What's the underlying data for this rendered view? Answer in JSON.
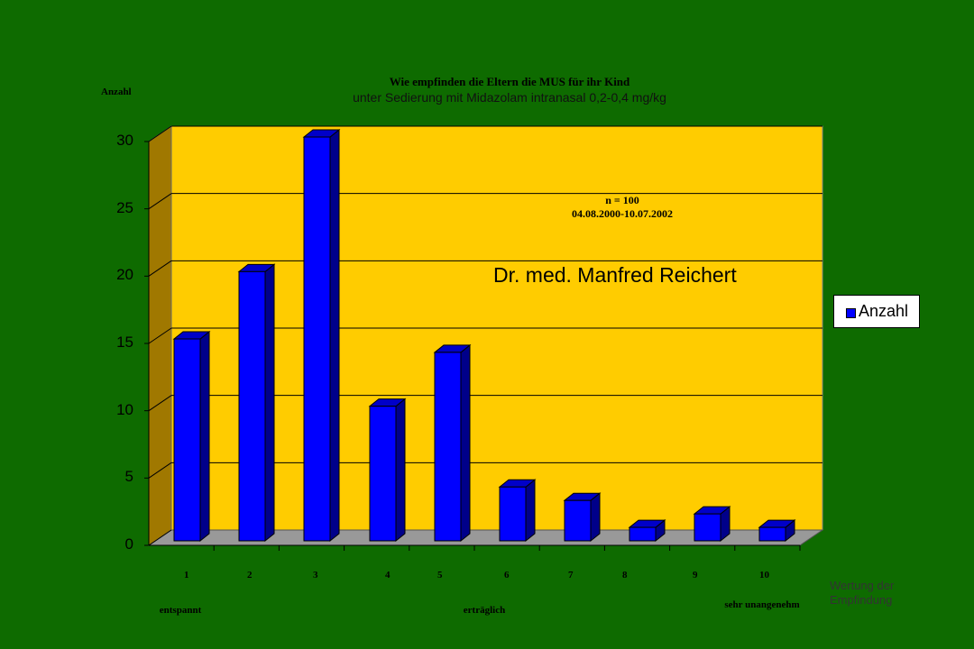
{
  "chart_data": {
    "type": "bar",
    "title": "Wie empfinden die Eltern die MUS für ihr Kind",
    "subtitle": "unter Sedierung mit Midazolam  intranasal 0,2-0,4 mg/kg",
    "ylabel": "Anzahl",
    "xlabel": "Wertung der Empfindung",
    "categories": [
      "1",
      "2",
      "3",
      "4",
      "5",
      "6",
      "7",
      "8",
      "9",
      "10"
    ],
    "series": [
      {
        "name": "Anzahl",
        "values": [
          15,
          20,
          30,
          10,
          14,
          4,
          3,
          1,
          2,
          1
        ]
      }
    ],
    "ylim": [
      0,
      30
    ],
    "yticks": [
      "0",
      "5",
      "10",
      "15",
      "20",
      "25",
      "30"
    ],
    "grid": true,
    "legend": "right",
    "category_notes": [
      {
        "at": "1",
        "text": "entspannt"
      },
      {
        "at": "5",
        "text": "erträglich"
      },
      {
        "at": "10",
        "text": "sehr unangenehm"
      }
    ],
    "annotations": [
      "n = 100",
      "04.08.2000-10.07.2002",
      "Dr. med. Manfred Reichert"
    ],
    "colors": {
      "background": "#0e6b00",
      "plot": "#ffcc00",
      "bar": "#0000ff",
      "floor": "#999999",
      "side_wall": "#a07800"
    }
  }
}
